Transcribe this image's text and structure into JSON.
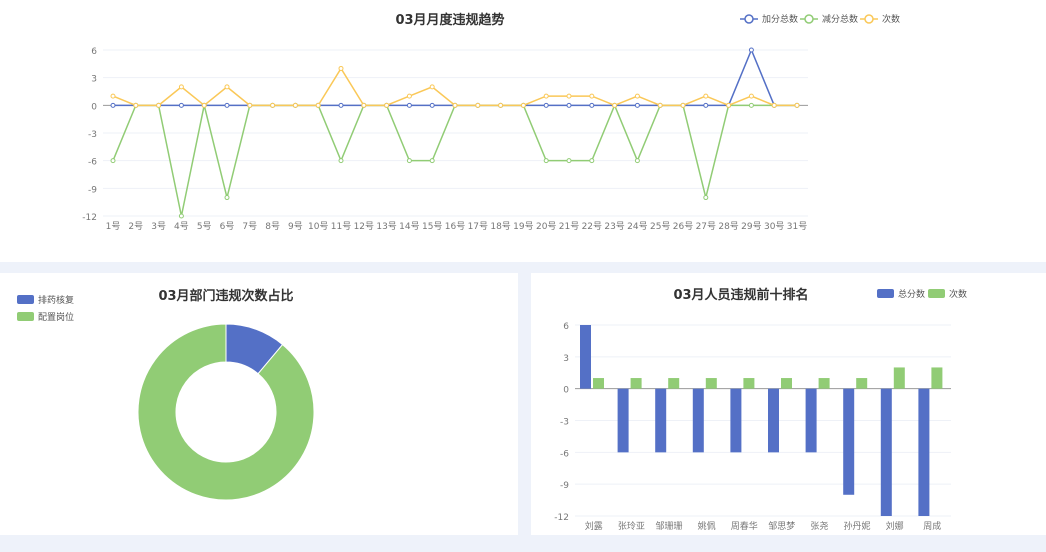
{
  "colors": {
    "blue": "#5470c6",
    "green": "#91cc75",
    "yellow": "#fac858"
  },
  "chart_data": [
    {
      "type": "line",
      "title": "03月月度违规趋势",
      "legend_position": "top-right",
      "categories": [
        "1号",
        "2号",
        "3号",
        "4号",
        "5号",
        "6号",
        "7号",
        "8号",
        "9号",
        "10号",
        "11号",
        "12号",
        "13号",
        "14号",
        "15号",
        "16号",
        "17号",
        "18号",
        "19号",
        "20号",
        "21号",
        "22号",
        "23号",
        "24号",
        "25号",
        "26号",
        "27号",
        "28号",
        "29号",
        "30号",
        "31号"
      ],
      "ylim": [
        -12,
        6
      ],
      "yticks": [
        6,
        3,
        0,
        -3,
        -6,
        -9,
        -12
      ],
      "grid": true,
      "series": [
        {
          "name": "加分总数",
          "color": "#5470c6",
          "values": [
            0,
            0,
            0,
            0,
            0,
            0,
            0,
            0,
            0,
            0,
            0,
            0,
            0,
            0,
            0,
            0,
            0,
            0,
            0,
            0,
            0,
            0,
            0,
            0,
            0,
            0,
            0,
            0,
            6,
            0,
            0
          ]
        },
        {
          "name": "减分总数",
          "color": "#91cc75",
          "values": [
            -6,
            0,
            0,
            -12,
            0,
            -10,
            0,
            0,
            0,
            0,
            -6,
            0,
            0,
            -6,
            -6,
            0,
            0,
            0,
            0,
            -6,
            -6,
            -6,
            0,
            -6,
            0,
            0,
            -10,
            0,
            0,
            0,
            0
          ]
        },
        {
          "name": "次数",
          "color": "#fac858",
          "values": [
            1,
            0,
            0,
            2,
            0,
            2,
            0,
            0,
            0,
            0,
            4,
            0,
            0,
            1,
            2,
            0,
            0,
            0,
            0,
            1,
            1,
            1,
            0,
            1,
            0,
            0,
            1,
            0,
            1,
            0,
            0
          ]
        }
      ]
    },
    {
      "type": "pie",
      "title": "03月部门违规次数占比",
      "donut": true,
      "legend_position": "top-left",
      "slices": [
        {
          "name": "排药核复",
          "value": 2,
          "color": "#5470c6"
        },
        {
          "name": "配置岗位",
          "value": 16,
          "color": "#91cc75"
        }
      ]
    },
    {
      "type": "bar",
      "title": "03月人员违规前十排名",
      "legend_position": "top-right",
      "categories": [
        "刘露",
        "张玲亚",
        "邹珊珊",
        "姚佩",
        "周春华",
        "邹思梦",
        "张尧",
        "孙丹妮",
        "刘娜",
        "周成"
      ],
      "ylim": [
        -12,
        6
      ],
      "yticks": [
        6,
        3,
        0,
        -3,
        -6,
        -9,
        -12
      ],
      "grid": true,
      "series": [
        {
          "name": "总分数",
          "color": "#5470c6",
          "values": [
            6,
            -6,
            -6,
            -6,
            -6,
            -6,
            -6,
            -10,
            -12,
            -12
          ]
        },
        {
          "name": "次数",
          "color": "#91cc75",
          "values": [
            1,
            1,
            1,
            1,
            1,
            1,
            1,
            1,
            2,
            2
          ]
        }
      ]
    }
  ]
}
